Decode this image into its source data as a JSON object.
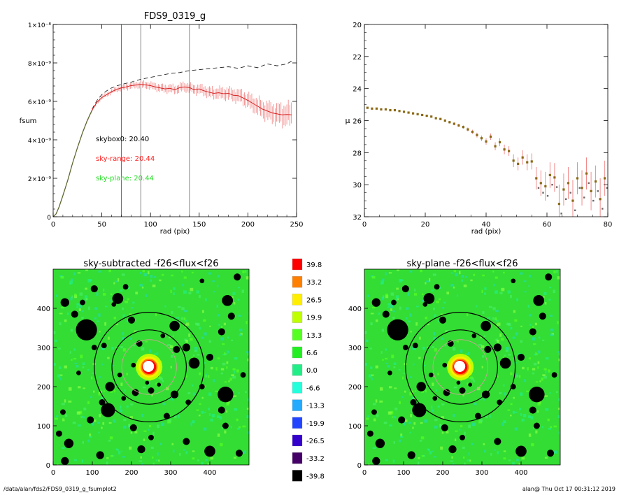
{
  "footer": {
    "left": "/data/alan/fds2/FDS9_0319_g_fsumplot2",
    "right": "alan@  Thu Oct 17 00:31:12 2019"
  },
  "colors": {
    "profile": "#d62020",
    "errbar": "#f08080",
    "label_black": "#000000",
    "label_red": "#ff2020",
    "label_green": "#22dd22",
    "mu_points": "#8b6914",
    "sky_green": "#33dd33"
  },
  "chart_data": [
    {
      "type": "line",
      "name": "fsum-profile",
      "title": "FDS9_0319_g",
      "xlabel": "rad (pix)",
      "ylabel": "fsum",
      "xlim": [
        0,
        250
      ],
      "ylim": [
        0,
        1e-08
      ],
      "xticks": [
        "0",
        "50",
        "100",
        "150",
        "200",
        "250"
      ],
      "yticks": [
        "0",
        "2×10⁻⁹",
        "4×10⁻⁹",
        "6×10⁻⁹",
        "8×10⁻⁹",
        "1×10⁻⁸"
      ],
      "vlines_red": [
        70
      ],
      "vlines_gray": [
        90,
        140
      ],
      "annotations": [
        {
          "text": "skybox0: 20.40",
          "color": "black"
        },
        {
          "text": "sky-range: 20.44",
          "color": "red"
        },
        {
          "text": "sky-plane: 20.44",
          "color": "green"
        }
      ],
      "series": [
        {
          "style": "solid",
          "x": [
            0,
            3,
            6,
            10,
            15,
            20,
            25,
            30,
            35,
            40,
            45,
            50,
            55,
            60,
            65,
            70,
            75,
            80,
            85,
            90,
            95,
            100,
            105,
            110,
            115,
            120,
            125,
            130,
            135,
            140,
            145,
            150,
            155,
            160,
            165,
            170,
            175,
            180,
            185,
            190,
            195,
            200,
            205,
            210,
            215,
            220,
            225,
            230,
            235,
            240,
            245
          ],
          "y": [
            0,
            1.5e-10,
            5e-10,
            1.1e-09,
            1.9e-09,
            2.8e-09,
            3.6e-09,
            4.35e-09,
            5e-09,
            5.55e-09,
            5.95e-09,
            6.2e-09,
            6.35e-09,
            6.5e-09,
            6.62e-09,
            6.7e-09,
            6.75e-09,
            6.82e-09,
            6.85e-09,
            6.88e-09,
            6.86e-09,
            6.82e-09,
            6.75e-09,
            6.7e-09,
            6.65e-09,
            6.68e-09,
            6.6e-09,
            6.72e-09,
            6.75e-09,
            6.72e-09,
            6.6e-09,
            6.65e-09,
            6.55e-09,
            6.48e-09,
            6.42e-09,
            6.45e-09,
            6.4e-09,
            6.42e-09,
            6.32e-09,
            6.3e-09,
            6.18e-09,
            6.05e-09,
            5.9e-09,
            5.75e-09,
            5.6e-09,
            5.5e-09,
            5.4e-09,
            5.35e-09,
            5.3e-09,
            5.32e-09,
            5.3e-09
          ],
          "err": [
            0,
            0,
            0,
            0,
            0,
            0,
            0,
            0,
            5e-11,
            7e-11,
            8e-11,
            1e-10,
            1e-10,
            1e-10,
            1.2e-10,
            1.3e-10,
            1.4e-10,
            1.5e-10,
            1.5e-10,
            1.6e-10,
            1.7e-10,
            1.7e-10,
            1.8e-10,
            1.8e-10,
            1.9e-10,
            2e-10,
            2e-10,
            2.1e-10,
            2.2e-10,
            2.2e-10,
            2.2e-10,
            2.3e-10,
            2.4e-10,
            2.5e-10,
            2.6e-10,
            2.7e-10,
            2.8e-10,
            2.9e-10,
            3e-10,
            3.1e-10,
            3.3e-10,
            3.5e-10,
            3.7e-10,
            4e-10,
            4.2e-10,
            4.4e-10,
            4.6e-10,
            4.8e-10,
            5e-10,
            5.2e-10,
            5.5e-10
          ]
        },
        {
          "style": "dashed",
          "x": [
            40,
            45,
            50,
            55,
            60,
            65,
            70,
            80,
            90,
            100,
            110,
            120,
            130,
            140,
            150,
            160,
            170,
            180,
            190,
            200,
            210,
            220,
            230,
            240,
            245
          ],
          "y": [
            5.6e-09,
            6.05e-09,
            6.35e-09,
            6.55e-09,
            6.7e-09,
            6.8e-09,
            6.88e-09,
            7e-09,
            7.15e-09,
            7.25e-09,
            7.35e-09,
            7.45e-09,
            7.5e-09,
            7.6e-09,
            7.65e-09,
            7.7e-09,
            7.75e-09,
            7.8e-09,
            7.72e-09,
            7.85e-09,
            7.75e-09,
            7.95e-09,
            7.85e-09,
            7.95e-09,
            8.1e-09
          ]
        }
      ]
    },
    {
      "type": "scatter",
      "name": "mu-profile",
      "xlabel": "rad (pix)",
      "ylabel": "μ",
      "xlim": [
        0,
        80
      ],
      "ylim": [
        32,
        20
      ],
      "xticks": [
        "0",
        "20",
        "40",
        "60",
        "80"
      ],
      "yticks": [
        "20",
        "22",
        "24",
        "26",
        "28",
        "30",
        "32"
      ],
      "x": [
        1,
        2.5,
        4,
        5.5,
        7,
        8.5,
        10,
        11.5,
        13,
        14.5,
        16,
        17.5,
        19,
        20.5,
        22,
        23.5,
        25,
        26.5,
        28,
        29.5,
        31,
        32.5,
        34,
        35.5,
        37,
        38.5,
        40,
        41.5,
        43,
        44.5,
        46,
        47.5,
        49,
        50.5,
        52,
        53.5,
        55,
        56.5,
        58,
        59.5,
        61,
        62.5,
        64,
        65.5,
        67,
        68.5,
        70,
        71.5,
        73,
        74.5,
        76,
        77.5,
        79
      ],
      "y": [
        25.2,
        25.25,
        25.25,
        25.3,
        25.3,
        25.35,
        25.35,
        25.4,
        25.45,
        25.5,
        25.55,
        25.6,
        25.65,
        25.7,
        25.75,
        25.85,
        25.9,
        26.0,
        26.1,
        26.2,
        26.3,
        26.4,
        26.55,
        26.7,
        26.9,
        27.1,
        27.3,
        27.0,
        27.6,
        27.35,
        27.8,
        27.9,
        28.5,
        28.7,
        28.3,
        28.6,
        28.55,
        29.6,
        29.9,
        30.1,
        29.4,
        29.55,
        31.2,
        30.3,
        29.9,
        31.0,
        29.6,
        30.2,
        29.3,
        30.4,
        29.8,
        30.9,
        29.6
      ],
      "err": [
        0.05,
        0.05,
        0.05,
        0.05,
        0.05,
        0.05,
        0.05,
        0.05,
        0.05,
        0.05,
        0.05,
        0.06,
        0.06,
        0.06,
        0.06,
        0.07,
        0.07,
        0.08,
        0.08,
        0.09,
        0.1,
        0.1,
        0.12,
        0.13,
        0.15,
        0.17,
        0.2,
        0.2,
        0.25,
        0.25,
        0.3,
        0.3,
        0.4,
        0.4,
        0.45,
        0.5,
        0.5,
        0.7,
        0.8,
        0.9,
        0.8,
        0.9,
        1.2,
        1.0,
        1.0,
        1.3,
        1.0,
        1.1,
        1.0,
        1.2,
        1.0,
        1.3,
        1.1
      ]
    },
    {
      "type": "heatmap",
      "name": "sky-subtracted-image",
      "title": "sky-subtracted -f26<flux<f26",
      "xlim": [
        0,
        500
      ],
      "ylim": [
        0,
        500
      ],
      "xticks": [
        "0",
        "100",
        "200",
        "300",
        "400"
      ],
      "yticks": [
        "0",
        "100",
        "200",
        "300",
        "400"
      ],
      "center": [
        245,
        250
      ],
      "circle_radii": [
        70,
        95,
        140
      ],
      "masks": [
        [
          30,
          415,
          11
        ],
        [
          55,
          385,
          9
        ],
        [
          85,
          345,
          27
        ],
        [
          105,
          450,
          9
        ],
        [
          165,
          425,
          14
        ],
        [
          200,
          370,
          9
        ],
        [
          185,
          455,
          7
        ],
        [
          310,
          355,
          13
        ],
        [
          315,
          295,
          9
        ],
        [
          360,
          260,
          14
        ],
        [
          430,
          340,
          9
        ],
        [
          445,
          420,
          14
        ],
        [
          455,
          380,
          9
        ],
        [
          470,
          480,
          9
        ],
        [
          400,
          275,
          9
        ],
        [
          485,
          230,
          7
        ],
        [
          440,
          180,
          20
        ],
        [
          380,
          200,
          7
        ],
        [
          340,
          300,
          10
        ],
        [
          145,
          200,
          12
        ],
        [
          140,
          140,
          18
        ],
        [
          125,
          160,
          8
        ],
        [
          25,
          135,
          7
        ],
        [
          40,
          55,
          12
        ],
        [
          30,
          10,
          10
        ],
        [
          15,
          80,
          8
        ],
        [
          120,
          25,
          10
        ],
        [
          205,
          95,
          9
        ],
        [
          225,
          40,
          10
        ],
        [
          290,
          125,
          8
        ],
        [
          310,
          180,
          10
        ],
        [
          340,
          60,
          9
        ],
        [
          400,
          35,
          14
        ],
        [
          440,
          100,
          8
        ],
        [
          430,
          140,
          9
        ],
        [
          475,
          30,
          9
        ],
        [
          250,
          70,
          7
        ],
        [
          180,
          170,
          6
        ],
        [
          105,
          300,
          7
        ],
        [
          130,
          305,
          7
        ],
        [
          220,
          310,
          8
        ],
        [
          280,
          330,
          6
        ],
        [
          170,
          230,
          6
        ],
        [
          210,
          185,
          9
        ],
        [
          250,
          190,
          8
        ],
        [
          155,
          410,
          6
        ],
        [
          75,
          415,
          7
        ],
        [
          65,
          235,
          6
        ],
        [
          345,
          160,
          7
        ],
        [
          95,
          115,
          9
        ],
        [
          380,
          470,
          6
        ],
        [
          205,
          255,
          6
        ],
        [
          265,
          230,
          6
        ],
        [
          240,
          210,
          5
        ],
        [
          270,
          205,
          5
        ],
        [
          235,
          245,
          5
        ]
      ],
      "source": [
        245,
        250
      ],
      "colorbar": [
        "39.8",
        "33.2",
        "26.5",
        "19.9",
        "13.3",
        "6.6",
        "0.0",
        "-6.6",
        "-13.3",
        "-19.9",
        "-26.5",
        "-33.2",
        "-39.8"
      ],
      "colorbar_colors": [
        "#ff0000",
        "#ff7f00",
        "#ffee00",
        "#bfff00",
        "#55ff22",
        "#22ee22",
        "#22ee88",
        "#22ffdd",
        "#22aaff",
        "#2244ff",
        "#3300cc",
        "#440066",
        "#000000"
      ]
    },
    {
      "type": "heatmap",
      "name": "sky-plane-image",
      "title": "sky-plane -f26<flux<f26",
      "xlim": [
        0,
        500
      ],
      "ylim": [
        0,
        500
      ],
      "xticks": [
        "0",
        "100",
        "200",
        "300",
        "400"
      ],
      "yticks": [
        "0",
        "100",
        "200",
        "300",
        "400"
      ]
    }
  ]
}
